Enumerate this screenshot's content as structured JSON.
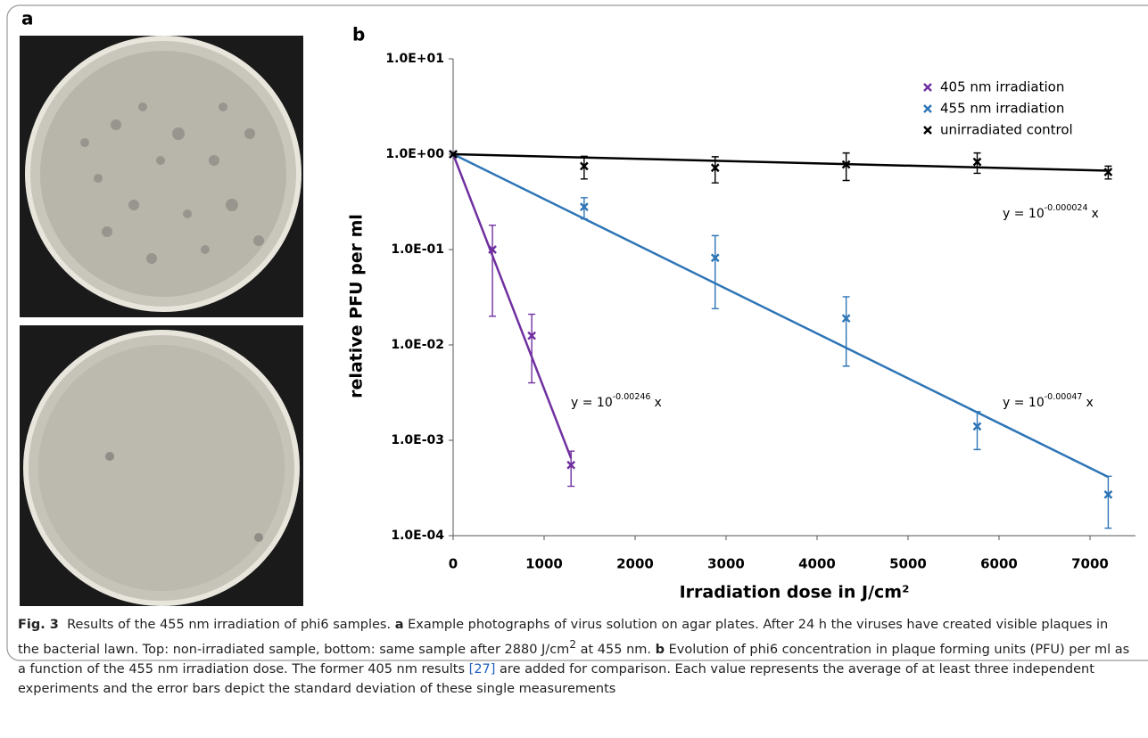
{
  "panels": {
    "a": "a",
    "b": "b"
  },
  "chart_data": {
    "type": "scatter",
    "xlabel": "Irradiation dose in J/cm²",
    "ylabel": "relative PFU per ml",
    "xlim": [
      0,
      7500
    ],
    "xticks": [
      0,
      1000,
      2000,
      3000,
      4000,
      5000,
      6000,
      7000
    ],
    "ylim": [
      0.0001,
      10
    ],
    "yscale": "log",
    "yticks": [
      {
        "value": 0.0001,
        "label": "1.0E-04"
      },
      {
        "value": 0.001,
        "label": "1.0E-03"
      },
      {
        "value": 0.01,
        "label": "1.0E-02"
      },
      {
        "value": 0.1,
        "label": "1.0E-01"
      },
      {
        "value": 1,
        "label": "1.0E+00"
      },
      {
        "value": 10,
        "label": "1.0E+01"
      }
    ],
    "legend": "upper right",
    "fit_prefix": "y = 10",
    "fit_suffix": "x",
    "series": [
      {
        "name": "405 nm irradiation",
        "color": "#7030a0",
        "x": [
          0,
          432,
          864,
          1296
        ],
        "values": [
          1,
          0.1,
          0.0125,
          0.00055
        ],
        "errors": [
          0,
          0.08,
          0.0085,
          0.00022
        ],
        "slope": -0.00246
      },
      {
        "name": "455 nm irradiation",
        "color": "#2e75b6",
        "x": [
          0,
          1440,
          2880,
          4320,
          5760,
          7200
        ],
        "values": [
          1,
          0.28,
          0.082,
          0.019,
          0.0014,
          0.00027
        ],
        "errors": [
          0,
          0.07,
          0.058,
          0.013,
          0.0006,
          0.00015
        ],
        "slope": -0.00047
      },
      {
        "name": "unirradiated control",
        "color": "#000000",
        "x": [
          0,
          1440,
          2880,
          4320,
          5760,
          7200
        ],
        "values": [
          1,
          0.75,
          0.72,
          0.78,
          0.83,
          0.65
        ],
        "errors": [
          0,
          0.2,
          0.22,
          0.25,
          0.2,
          0.1
        ],
        "slope": -2.4e-05
      }
    ]
  },
  "caption": {
    "label": "Fig. 3",
    "intro": "Results of the 455 nm irradiation of phi6 samples.",
    "part_a": "a",
    "text_a_1": "Example photographs of virus solution on agar plates. After 24 h the viruses have created visible plaques in the bacterial lawn. Top: non-irradiated sample, bottom: same sample after 2880 J/cm",
    "text_a_sup": "2",
    "text_a_2": "at 455 nm.",
    "part_b": "b",
    "text_b_1": "Evolution of phi6 concentration in plaque forming units (PFU) per ml as a function of the 455 nm irradiation dose. The former 405 nm results",
    "ref": "[27]",
    "text_b_2": "are added for comparison. Each value represents the average of at least three independent experiments and the error bars depict the standard deviation of these single measurements"
  }
}
